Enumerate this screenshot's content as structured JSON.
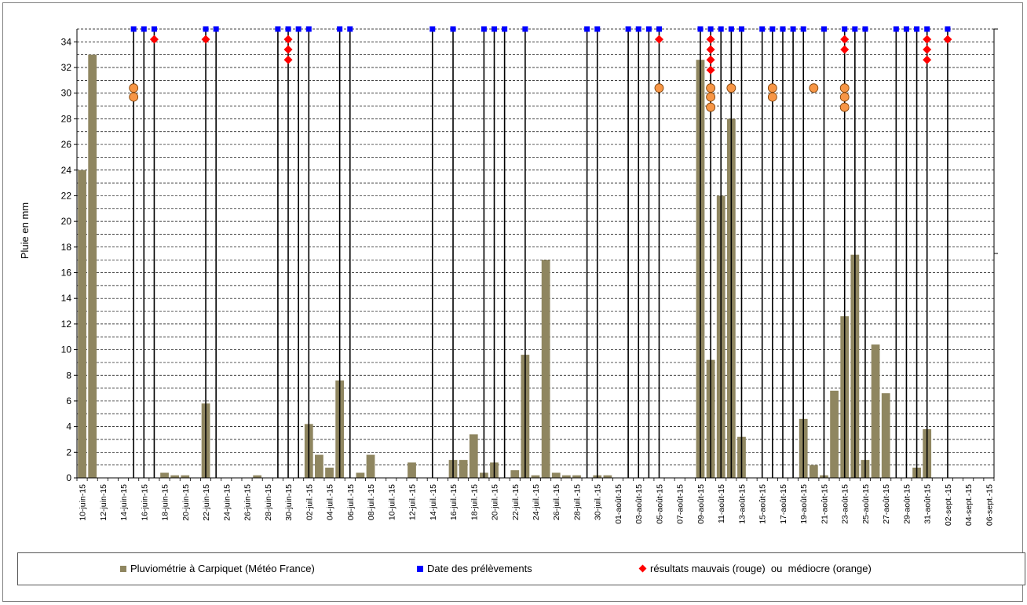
{
  "chart_data": {
    "type": "bar",
    "ylabel": "Pluie en mm",
    "ylim": [
      0,
      35
    ],
    "ytick_step": 2,
    "ytick_labels": [
      "0",
      "2",
      "4",
      "6",
      "8",
      "10",
      "12",
      "14",
      "16",
      "18",
      "20",
      "22",
      "24",
      "26",
      "28",
      "30",
      "32",
      "34"
    ],
    "grid": "dashed horizontal every 1 mm",
    "legend_position": "bottom",
    "x_tick_labels": [
      "10-juin-15",
      "12-juin-15",
      "14-juin-15",
      "16-juin-15",
      "18-juin-15",
      "20-juin-15",
      "22-juin-15",
      "24-juin-15",
      "26-juin-15",
      "28-juin-15",
      "30-juin-15",
      "02-juil.-15",
      "04-juil.-15",
      "06-juil.-15",
      "08-juil.-15",
      "10-juil.-15",
      "12-juil.-15",
      "14-juil.-15",
      "16-juil.-15",
      "18-juil.-15",
      "20-juil.-15",
      "22-juil.-15",
      "24-juil.-15",
      "26-juil.-15",
      "28-juil.-15",
      "30-juil.-15",
      "01-août-15",
      "03-août-15",
      "05-août-15",
      "07-août-15",
      "09-août-15",
      "11-août-15",
      "13-août-15",
      "15-août-15",
      "17-août-15",
      "19-août-15",
      "21-août-15",
      "23-août-15",
      "25-août-15",
      "27-août-15",
      "29-août-15",
      "31-août-15",
      "02-sept.-15",
      "04-sept.-15",
      "06-sept.-15"
    ],
    "series": [
      {
        "name": "Pluviométrie à Carpiquet (Météo France)",
        "kind": "bar",
        "color": "#8f8660",
        "values": [
          24,
          33,
          0,
          0,
          0,
          0,
          0,
          0,
          0.4,
          0.2,
          0.2,
          0,
          5.8,
          0,
          0,
          0,
          0,
          0.2,
          0,
          0,
          0,
          0,
          4.2,
          1.8,
          0.8,
          7.6,
          0,
          0.4,
          1.8,
          0,
          0,
          0,
          1.2,
          0,
          0,
          0,
          1.4,
          1.4,
          3.4,
          0.4,
          1.2,
          0,
          0.6,
          9.6,
          0.2,
          17,
          0.4,
          0.2,
          0.2,
          0,
          0.2,
          0.2,
          0,
          0,
          0,
          0,
          0,
          0,
          0,
          0,
          32.6,
          9.2,
          22,
          28,
          3.2,
          0,
          0,
          0,
          0,
          0,
          4.6,
          1,
          0.2,
          6.8,
          12.6,
          17.4,
          1.4,
          10.4,
          6.6,
          0,
          0,
          0.8,
          3.8,
          0,
          0,
          0,
          0,
          0,
          0
        ]
      },
      {
        "name": "Date des prélèvements",
        "kind": "vline-square",
        "color": "#0000ff",
        "day_index": [
          5,
          6,
          7,
          12,
          13,
          19,
          20,
          21,
          22,
          25,
          26,
          34,
          36,
          39,
          40,
          41,
          43,
          49,
          50,
          53,
          54,
          55,
          56,
          60,
          61,
          62,
          63,
          64,
          66,
          67,
          68,
          69,
          70,
          72,
          74,
          75,
          76,
          79,
          80,
          81,
          82,
          84
        ]
      },
      {
        "name": "résultats mauvais (rouge)  ou  médiocre (orange)",
        "kind": "markers",
        "red": [
          [
            7,
            34.2
          ],
          [
            12,
            34.2
          ],
          [
            20,
            34.2
          ],
          [
            20,
            33.4
          ],
          [
            20,
            32.6
          ],
          [
            56,
            34.2
          ],
          [
            61,
            34.2
          ],
          [
            61,
            33.4
          ],
          [
            61,
            32.6
          ],
          [
            61,
            31.8
          ],
          [
            74,
            34.2
          ],
          [
            74,
            33.4
          ],
          [
            82,
            34.2
          ],
          [
            82,
            33.4
          ],
          [
            82,
            32.6
          ],
          [
            84,
            34.2
          ]
        ],
        "orange": [
          [
            5,
            30.4
          ],
          [
            5,
            29.7
          ],
          [
            56,
            30.4
          ],
          [
            61,
            30.4
          ],
          [
            61,
            29.7
          ],
          [
            61,
            28.9
          ],
          [
            63,
            30.4
          ],
          [
            67,
            30.4
          ],
          [
            67,
            29.7
          ],
          [
            71,
            30.4
          ],
          [
            74,
            30.4
          ],
          [
            74,
            29.7
          ],
          [
            74,
            28.9
          ]
        ]
      }
    ]
  },
  "legend": {
    "bar_label": "Pluviométrie à Carpiquet (Météo France)",
    "square_label": "Date des prélèvements",
    "diamond_label": "résultats mauvais (rouge)  ou  médiocre (orange)"
  },
  "colors": {
    "bar": "#8f8660",
    "square": "#0000ff",
    "red": "#ff0000",
    "orange": "#f79646"
  }
}
